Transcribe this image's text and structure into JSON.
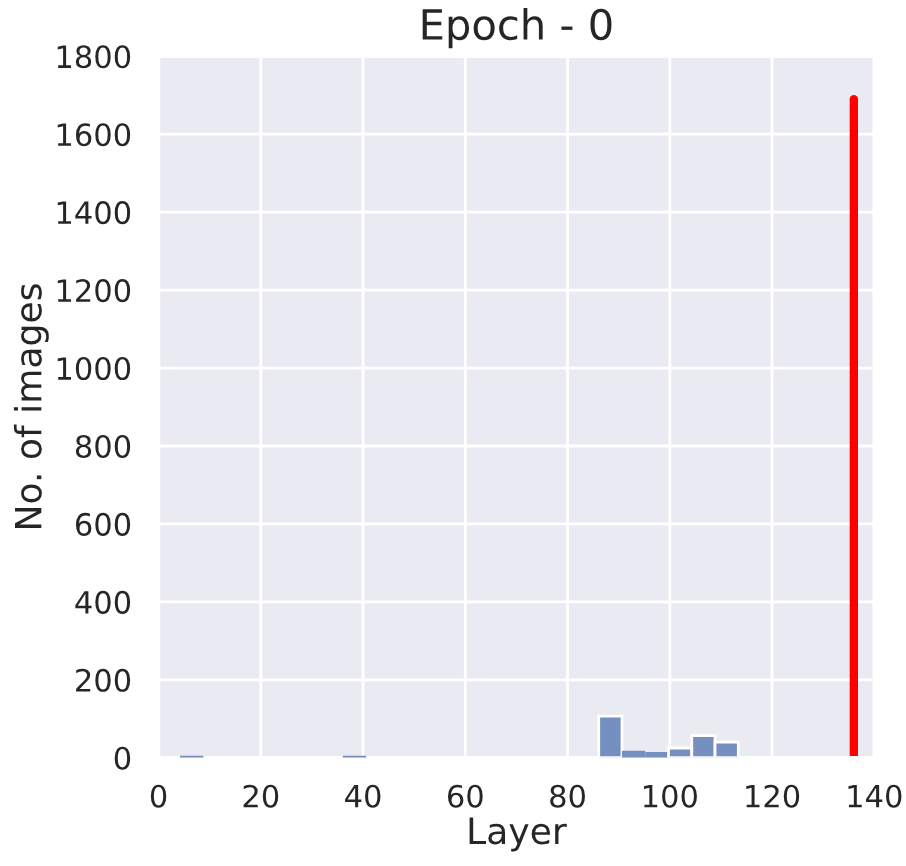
{
  "chart_data": {
    "type": "histogram",
    "title": "Epoch - 0",
    "xlabel": "Layer",
    "ylabel": "No. of images",
    "bins": [
      4.2,
      8.75,
      13.3,
      17.85,
      22.4,
      26.95,
      31.5,
      36.05,
      40.6,
      45.15,
      49.7,
      54.25,
      58.8,
      63.35,
      67.9,
      72.45,
      77.0,
      81.55,
      86.1,
      90.65,
      95.2,
      99.75,
      104.3,
      108.85,
      113.4
    ],
    "values": [
      5,
      0,
      0,
      0,
      0,
      0,
      0,
      5,
      0,
      0,
      0,
      0,
      0,
      0,
      0,
      0,
      0,
      0,
      107,
      18,
      15,
      25,
      57,
      40
    ],
    "color": "#7590c0",
    "series": [
      {
        "type": "line",
        "color": "#ff0000",
        "x": [
          136,
          136
        ],
        "values": [
          0,
          1690
        ]
      }
    ],
    "xlim": [
      0,
      140
    ],
    "xticks": [
      0,
      20,
      40,
      60,
      80,
      100,
      120,
      140
    ],
    "ylim": [
      0,
      1800
    ],
    "yticks": [
      0,
      200,
      400,
      600,
      800,
      1000,
      1200,
      1400,
      1600,
      1800
    ],
    "grid": true
  }
}
